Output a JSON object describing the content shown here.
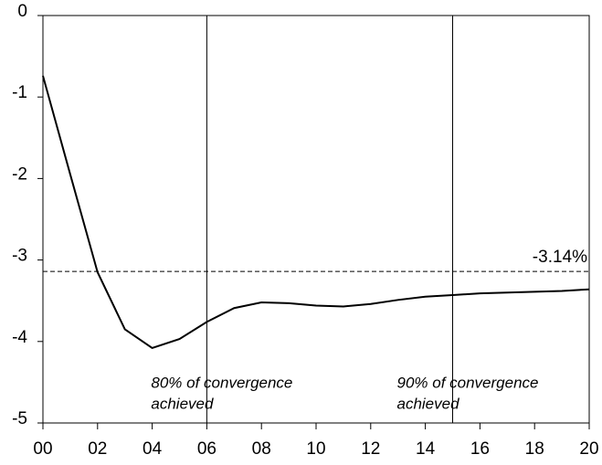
{
  "chart_data": {
    "type": "line",
    "x": [
      0,
      1,
      2,
      3,
      4,
      5,
      6,
      7,
      8,
      9,
      10,
      11,
      12,
      13,
      14,
      15,
      16,
      17,
      18,
      19,
      20
    ],
    "series": [
      {
        "color": "#000000",
        "values": [
          -0.74,
          -1.95,
          -3.15,
          -3.85,
          -4.08,
          -3.97,
          -3.76,
          -3.59,
          -3.52,
          -3.53,
          -3.56,
          -3.57,
          -3.54,
          -3.49,
          -3.45,
          -3.43,
          -3.41,
          -3.4,
          -3.39,
          -3.38,
          -3.36
        ]
      }
    ],
    "xlim": [
      0,
      20
    ],
    "xticks": [
      {
        "value": 0,
        "label": "00"
      },
      {
        "value": 2,
        "label": "02"
      },
      {
        "value": 4,
        "label": "04"
      },
      {
        "value": 6,
        "label": "06"
      },
      {
        "value": 8,
        "label": "08"
      },
      10,
      12,
      14,
      16,
      18,
      20
    ],
    "ylim": [
      -5,
      0
    ],
    "yticks": [
      0,
      -1,
      -2,
      -3,
      -4,
      -5
    ],
    "reference_line": {
      "value": -3.14,
      "label": "-3.14%"
    },
    "annotations": [
      {
        "x": 6,
        "text": [
          "80% of convergence",
          "achieved"
        ]
      },
      {
        "x": 15,
        "text": [
          "90% of convergence",
          "achieved"
        ]
      }
    ]
  }
}
